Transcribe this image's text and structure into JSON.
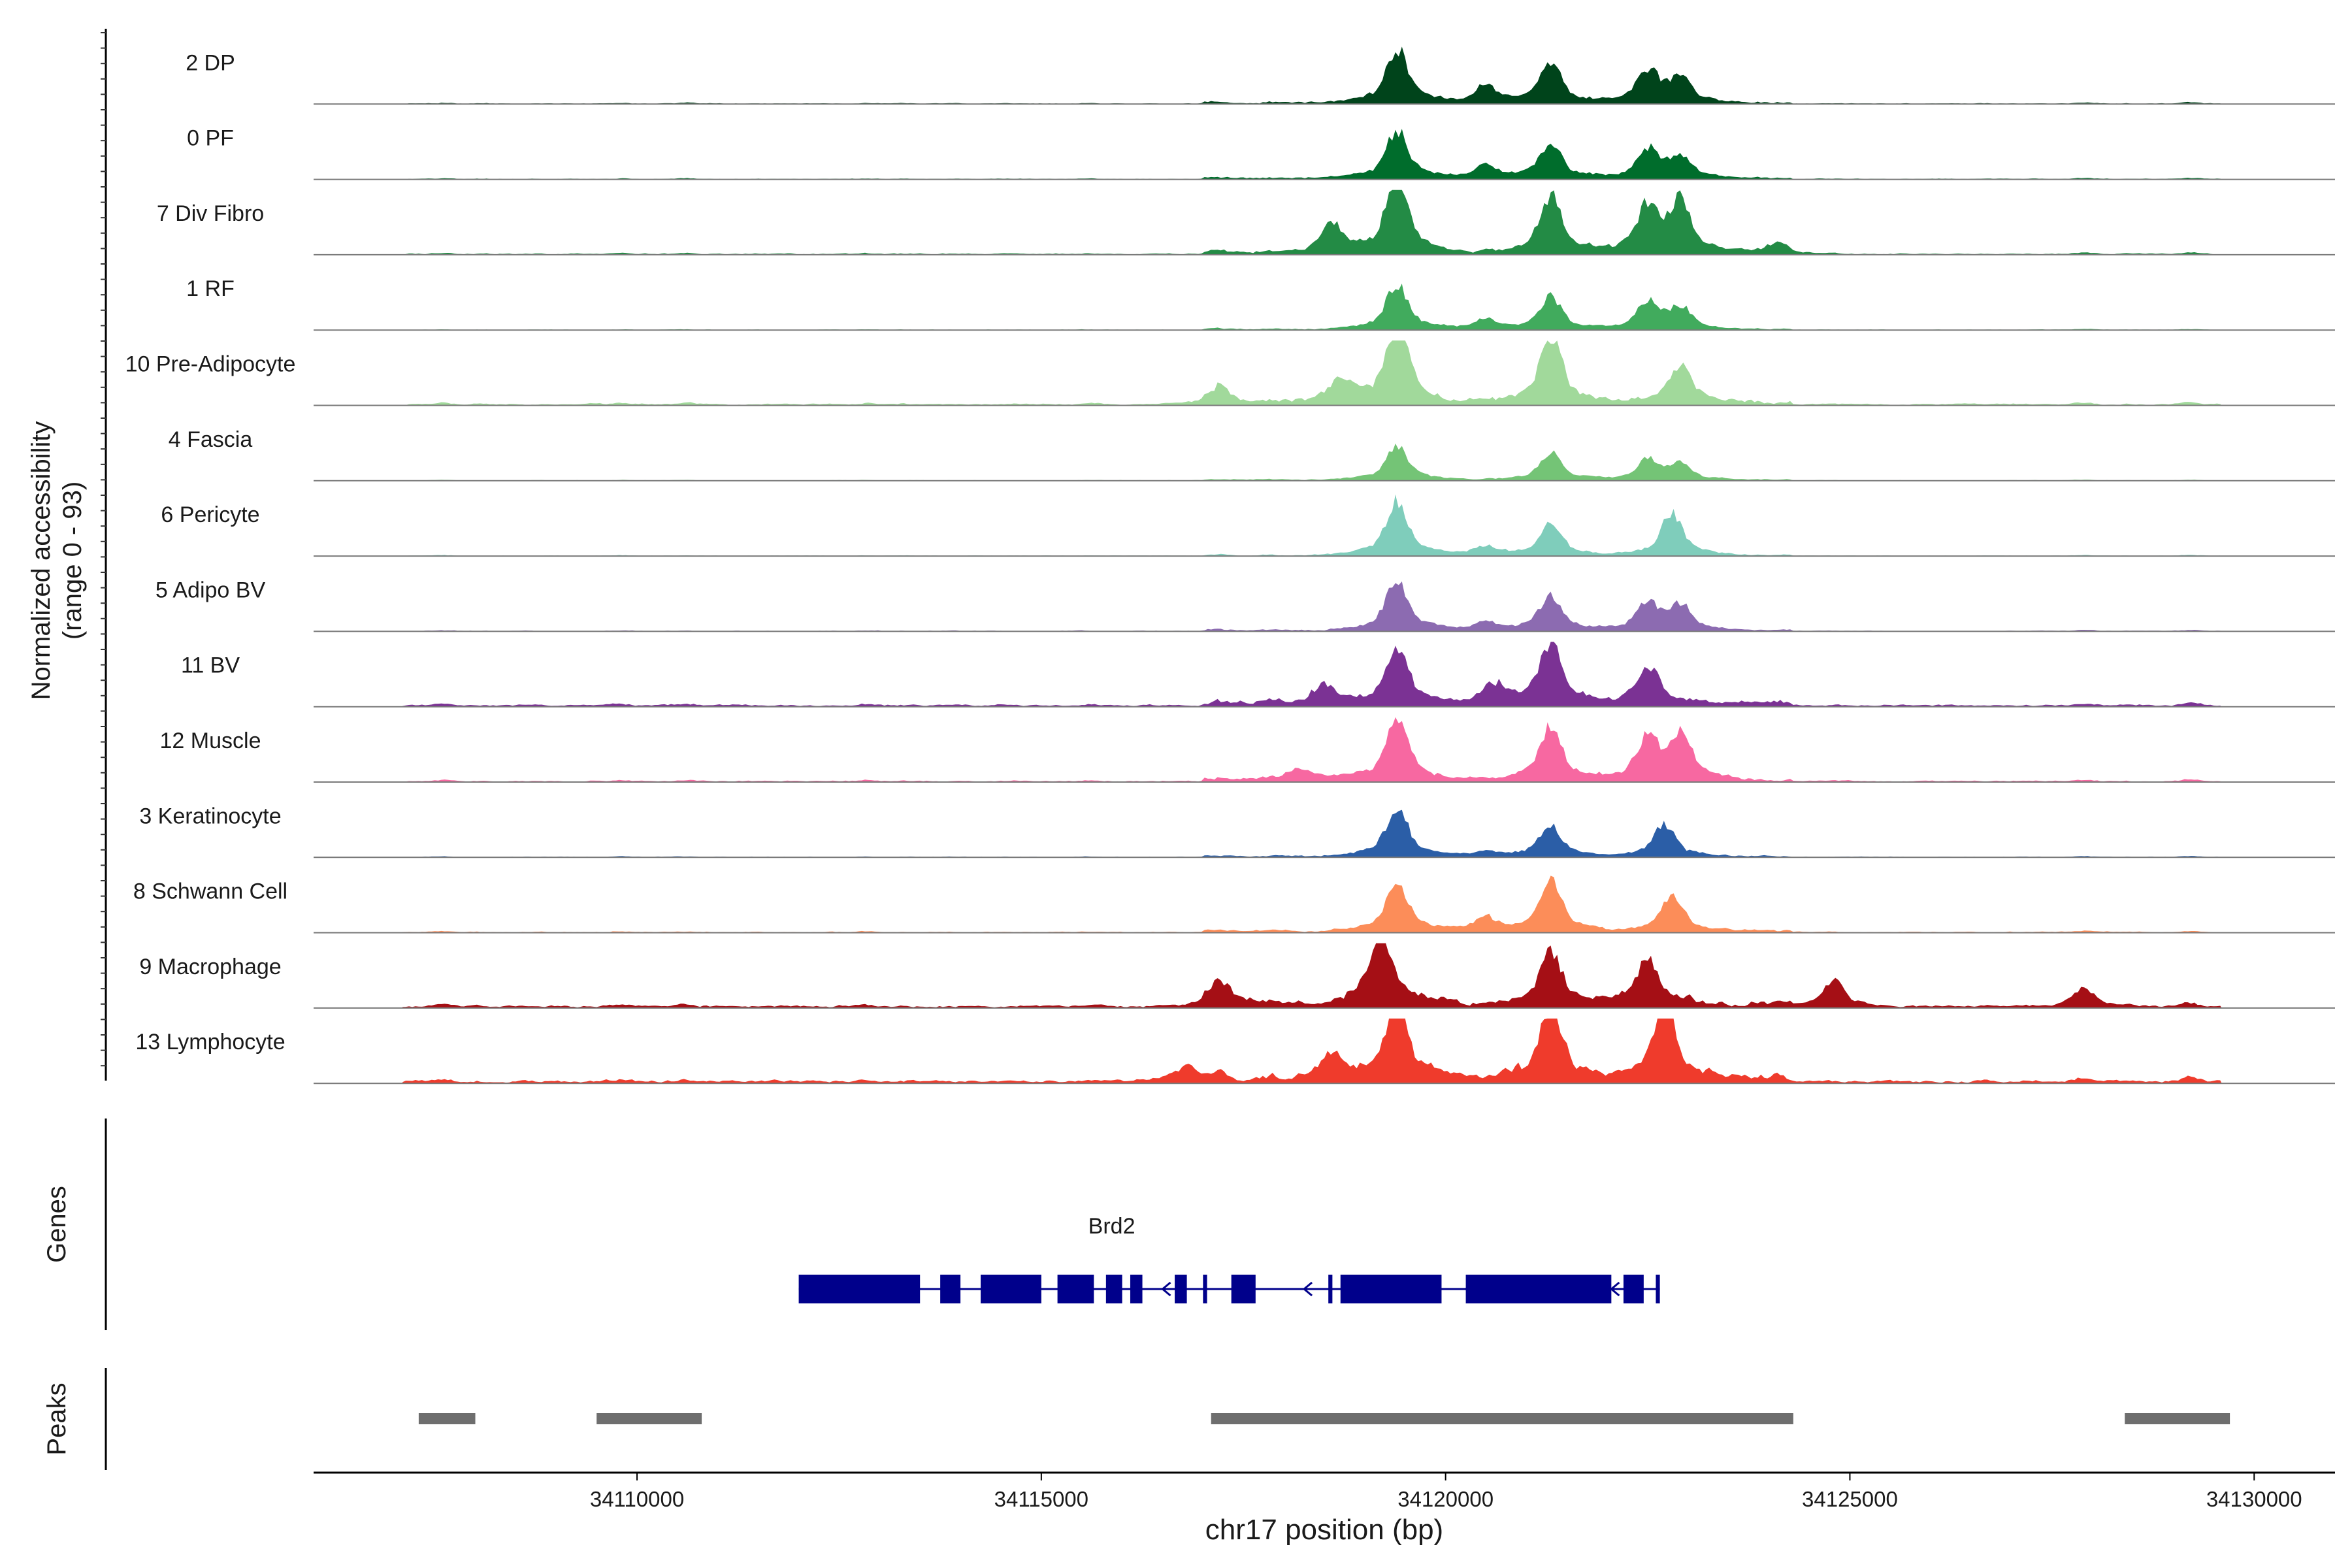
{
  "chart_data": {
    "type": "area",
    "title": "",
    "ylabel_line1": "Normalized accessibility",
    "ylabel_line2": "(range 0 - 93)",
    "yrange": [
      0,
      93
    ],
    "xlabel": "chr17 position (bp)",
    "xlim": [
      34106000,
      34131000
    ],
    "xticks": [
      34110000,
      34115000,
      34120000,
      34125000,
      34130000
    ],
    "xtick_labels": [
      "34110000",
      "34115000",
      "34120000",
      "34125000",
      "34130000"
    ],
    "grid": false,
    "region": {
      "start": 34107100,
      "end": 34129600
    },
    "background_peaks": [
      {
        "pos": 34107600,
        "h": 0.1
      },
      {
        "pos": 34109800,
        "h": 0.1
      },
      {
        "pos": 34110600,
        "h": 0.08
      },
      {
        "pos": 34112800,
        "h": 0.08
      },
      {
        "pos": 34115600,
        "h": 0.06
      },
      {
        "pos": 34117200,
        "h": 0.12
      },
      {
        "pos": 34127900,
        "h": 0.12
      },
      {
        "pos": 34129200,
        "h": 0.16
      }
    ],
    "tracks": [
      {
        "name": "2 DP",
        "label": "2 DP",
        "color": "#00441b",
        "noise": 0.04,
        "scale": 0.85,
        "peaks": [
          {
            "pos": 34119400,
            "h": 0.75
          },
          {
            "pos": 34121300,
            "h": 0.55
          },
          {
            "pos": 34122500,
            "h": 0.45
          },
          {
            "pos": 34120500,
            "h": 0.25
          },
          {
            "pos": 34122900,
            "h": 0.35
          }
        ]
      },
      {
        "name": "0 PF",
        "label": "0 PF",
        "color": "#006d2c",
        "noise": 0.04,
        "scale": 0.75,
        "peaks": [
          {
            "pos": 34119400,
            "h": 0.75
          },
          {
            "pos": 34121300,
            "h": 0.55
          },
          {
            "pos": 34122500,
            "h": 0.45
          },
          {
            "pos": 34120500,
            "h": 0.22
          },
          {
            "pos": 34122900,
            "h": 0.35
          }
        ]
      },
      {
        "name": "7 Div Fibro",
        "label": "7 Div Fibro",
        "color": "#238b45",
        "noise": 0.05,
        "scale": 1.0,
        "peaks": [
          {
            "pos": 34119400,
            "h": 0.95
          },
          {
            "pos": 34121300,
            "h": 0.7
          },
          {
            "pos": 34122500,
            "h": 0.55
          },
          {
            "pos": 34118600,
            "h": 0.35
          },
          {
            "pos": 34122900,
            "h": 0.6
          },
          {
            "pos": 34124100,
            "h": 0.12
          }
        ]
      },
      {
        "name": "1 RF",
        "label": "1 RF",
        "color": "#41ab5d",
        "noise": 0.03,
        "scale": 0.72,
        "peaks": [
          {
            "pos": 34119400,
            "h": 0.75
          },
          {
            "pos": 34121300,
            "h": 0.55
          },
          {
            "pos": 34122500,
            "h": 0.45
          },
          {
            "pos": 34120500,
            "h": 0.18
          },
          {
            "pos": 34122900,
            "h": 0.35
          }
        ]
      },
      {
        "name": "10 Pre-Adipocyte",
        "label": "10 Pre-Adipocyte",
        "color": "#a1d99b",
        "noise": 0.07,
        "scale": 1.0,
        "peaks": [
          {
            "pos": 34119400,
            "h": 0.95
          },
          {
            "pos": 34121300,
            "h": 0.8
          },
          {
            "pos": 34122900,
            "h": 0.45
          },
          {
            "pos": 34118700,
            "h": 0.25
          },
          {
            "pos": 34117200,
            "h": 0.18
          }
        ]
      },
      {
        "name": "4 Fascia",
        "label": "4 Fascia",
        "color": "#74c476",
        "noise": 0.04,
        "scale": 0.55,
        "peaks": [
          {
            "pos": 34119400,
            "h": 0.75
          },
          {
            "pos": 34121300,
            "h": 0.6
          },
          {
            "pos": 34122500,
            "h": 0.45
          },
          {
            "pos": 34122900,
            "h": 0.35
          }
        ]
      },
      {
        "name": "6 Pericyte",
        "label": "6 Pericyte",
        "color": "#7fcdbb",
        "noise": 0.03,
        "scale": 0.75,
        "peaks": [
          {
            "pos": 34119400,
            "h": 0.85
          },
          {
            "pos": 34121300,
            "h": 0.5
          },
          {
            "pos": 34122800,
            "h": 0.65
          },
          {
            "pos": 34120500,
            "h": 0.15
          }
        ]
      },
      {
        "name": "5 Adipo BV",
        "label": "5 Adipo BV",
        "color": "#8c6bb1",
        "noise": 0.04,
        "scale": 0.72,
        "peaks": [
          {
            "pos": 34119400,
            "h": 0.85
          },
          {
            "pos": 34121300,
            "h": 0.6
          },
          {
            "pos": 34122500,
            "h": 0.45
          },
          {
            "pos": 34122900,
            "h": 0.4
          },
          {
            "pos": 34120500,
            "h": 0.15
          }
        ]
      },
      {
        "name": "11 BV",
        "label": "11 BV",
        "color": "#7b3294",
        "noise": 0.09,
        "scale": 0.9,
        "peaks": [
          {
            "pos": 34119400,
            "h": 0.75
          },
          {
            "pos": 34121300,
            "h": 0.8
          },
          {
            "pos": 34122500,
            "h": 0.5
          },
          {
            "pos": 34118500,
            "h": 0.25
          },
          {
            "pos": 34120600,
            "h": 0.25
          }
        ]
      },
      {
        "name": "12 Muscle",
        "label": "12 Muscle",
        "color": "#f768a1",
        "noise": 0.06,
        "scale": 0.9,
        "peaks": [
          {
            "pos": 34119400,
            "h": 0.85
          },
          {
            "pos": 34121300,
            "h": 0.7
          },
          {
            "pos": 34122500,
            "h": 0.55
          },
          {
            "pos": 34122900,
            "h": 0.6
          },
          {
            "pos": 34118200,
            "h": 0.15
          }
        ]
      },
      {
        "name": "3 Keratinocyte",
        "label": "3 Keratinocyte",
        "color": "#2b5ea7",
        "noise": 0.04,
        "scale": 0.7,
        "peaks": [
          {
            "pos": 34119400,
            "h": 0.85
          },
          {
            "pos": 34121300,
            "h": 0.5
          },
          {
            "pos": 34122700,
            "h": 0.55
          },
          {
            "pos": 34120500,
            "h": 0.1
          }
        ]
      },
      {
        "name": "8 Schwann Cell",
        "label": "8 Schwann Cell",
        "color": "#fc8d59",
        "noise": 0.05,
        "scale": 0.8,
        "peaks": [
          {
            "pos": 34119400,
            "h": 0.75
          },
          {
            "pos": 34121300,
            "h": 0.8
          },
          {
            "pos": 34122800,
            "h": 0.55
          },
          {
            "pos": 34120500,
            "h": 0.2
          }
        ]
      },
      {
        "name": "9 Macrophage",
        "label": "9 Macrophage",
        "color": "#a50f15",
        "noise": 0.1,
        "scale": 1.0,
        "peaks": [
          {
            "pos": 34119200,
            "h": 0.95
          },
          {
            "pos": 34121300,
            "h": 0.6
          },
          {
            "pos": 34122500,
            "h": 0.5
          },
          {
            "pos": 34117200,
            "h": 0.25
          },
          {
            "pos": 34124800,
            "h": 0.3
          },
          {
            "pos": 34127900,
            "h": 0.18
          }
        ]
      },
      {
        "name": "13 Lymphocyte",
        "label": "13 Lymphocyte",
        "color": "#ef3b2c",
        "noise": 0.12,
        "scale": 1.0,
        "peaks": [
          {
            "pos": 34119400,
            "h": 0.95
          },
          {
            "pos": 34121300,
            "h": 0.9
          },
          {
            "pos": 34122700,
            "h": 0.9
          },
          {
            "pos": 34118600,
            "h": 0.3
          },
          {
            "pos": 34116800,
            "h": 0.2
          }
        ]
      }
    ],
    "genes_label": "Genes",
    "gene": {
      "name": "Brd2",
      "color": "#00008b",
      "start": 34112000,
      "end": 34122650,
      "strand": "-",
      "exons": [
        [
          34112000,
          34113500
        ],
        [
          34113750,
          34114000
        ],
        [
          34114250,
          34115000
        ],
        [
          34115200,
          34115650
        ],
        [
          34115800,
          34116000
        ],
        [
          34116100,
          34116250
        ],
        [
          34116650,
          34116800
        ],
        [
          34117000,
          34117050
        ],
        [
          34117350,
          34117650
        ],
        [
          34118550,
          34118600
        ],
        [
          34118700,
          34119950
        ],
        [
          34120250,
          34122050
        ],
        [
          34122200,
          34122450
        ],
        [
          34122600,
          34122650
        ]
      ],
      "arrows": [
        34116500,
        34118250,
        34120250,
        34122050
      ]
    },
    "peaks_label": "Peaks",
    "peak_color": "#6e6e6e",
    "peaks": [
      [
        34107300,
        34108000
      ],
      [
        34109500,
        34110800
      ],
      [
        34117100,
        34124300
      ],
      [
        34128400,
        34129700
      ]
    ]
  }
}
